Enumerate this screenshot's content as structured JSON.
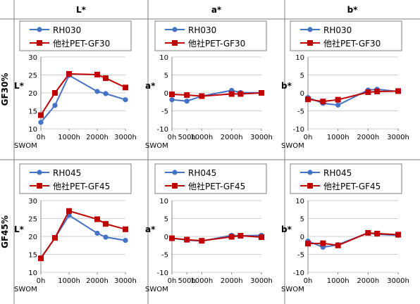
{
  "columns": [
    "L*",
    "a*",
    "b*"
  ],
  "rows": [
    "GF30%",
    "GF45%"
  ],
  "colors": {
    "rh": "#4472C4",
    "other": "#C00000",
    "grid": "#bfbfbf",
    "border": "#808080"
  },
  "chart_data": [
    {
      "type": "line",
      "row": 0,
      "col": 0,
      "x_tick_labels": [
        "0h",
        "1000h",
        "2000h",
        "3000h"
      ],
      "x_tick_values": [
        0,
        1000,
        2000,
        3000
      ],
      "x_unit": "SWOM",
      "ylabel": "L*",
      "ylim": [
        10,
        30
      ],
      "yticks": [
        10,
        15,
        20,
        25,
        30
      ],
      "series": [
        {
          "name": "RH030",
          "x": [
            0,
            500,
            1000,
            2000,
            2300,
            3000
          ],
          "y": [
            11.8,
            16.5,
            24.9,
            20.4,
            19.8,
            18.1
          ]
        },
        {
          "name": "他社PET-GF30",
          "x": [
            0,
            500,
            1000,
            2000,
            2300,
            3000
          ],
          "y": [
            13.8,
            20.0,
            25.3,
            25.1,
            24.1,
            21.5
          ]
        }
      ]
    },
    {
      "type": "line",
      "row": 0,
      "col": 1,
      "x_tick_labels": [
        "0h",
        "500h",
        "1000h",
        "2000h",
        "3000h"
      ],
      "x_tick_values": [
        0,
        500,
        1000,
        2000,
        3000
      ],
      "x_unit": "SWOM",
      "ylabel": "a*",
      "ylim": [
        -10,
        10
      ],
      "yticks": [
        -10,
        -5,
        0,
        5,
        10
      ],
      "series": [
        {
          "name": "RH030",
          "x": [
            0,
            500,
            1000,
            2000,
            2300,
            3000
          ],
          "y": [
            -1.9,
            -2.3,
            -0.9,
            0.7,
            0.1,
            0.0
          ]
        },
        {
          "name": "他社PET-GF30",
          "x": [
            0,
            500,
            1000,
            2000,
            2300,
            3000
          ],
          "y": [
            -0.4,
            -0.6,
            -0.9,
            -0.3,
            -0.3,
            0.0
          ]
        }
      ]
    },
    {
      "type": "line",
      "row": 0,
      "col": 2,
      "x_tick_labels": [
        "0h",
        "1000h",
        "2000h",
        "3000h"
      ],
      "x_tick_values": [
        0,
        1000,
        2000,
        3000
      ],
      "x_unit": "SWOM",
      "ylabel": "b*",
      "ylim": [
        -10,
        10
      ],
      "yticks": [
        -10,
        -5,
        0,
        5,
        10
      ],
      "series": [
        {
          "name": "RH030",
          "x": [
            0,
            500,
            1000,
            2000,
            2300,
            3000
          ],
          "y": [
            -1.3,
            -2.9,
            -3.4,
            0.8,
            1.0,
            0.4
          ]
        },
        {
          "name": "他社PET-GF30",
          "x": [
            0,
            500,
            1000,
            2000,
            2300,
            3000
          ],
          "y": [
            -1.8,
            -2.4,
            -1.9,
            0.2,
            0.4,
            0.5
          ]
        }
      ]
    },
    {
      "type": "line",
      "row": 1,
      "col": 0,
      "x_tick_labels": [
        "0h",
        "1000h",
        "2000h",
        "3000h"
      ],
      "x_tick_values": [
        0,
        1000,
        2000,
        3000
      ],
      "x_unit": "SWOM",
      "ylabel": "L*",
      "ylim": [
        10,
        30
      ],
      "yticks": [
        10,
        15,
        20,
        25,
        30
      ],
      "series": [
        {
          "name": "RH045",
          "x": [
            0,
            500,
            1000,
            2000,
            2300,
            3000
          ],
          "y": [
            14.0,
            19.6,
            25.9,
            20.9,
            19.8,
            18.9
          ]
        },
        {
          "name": "他社PET-GF45",
          "x": [
            0,
            500,
            1000,
            2000,
            2300,
            3000
          ],
          "y": [
            13.9,
            19.6,
            27.1,
            24.8,
            23.5,
            22.0
          ]
        }
      ]
    },
    {
      "type": "line",
      "row": 1,
      "col": 1,
      "x_tick_labels": [
        "0h",
        "500h",
        "1000h",
        "2000h",
        "3000h"
      ],
      "x_tick_values": [
        0,
        500,
        1000,
        2000,
        3000
      ],
      "x_unit": "SWOM",
      "ylabel": "a*",
      "ylim": [
        -10,
        10
      ],
      "yticks": [
        -10,
        -5,
        0,
        5,
        10
      ],
      "series": [
        {
          "name": "RH045",
          "x": [
            0,
            500,
            1000,
            2000,
            2300,
            3000
          ],
          "y": [
            -0.5,
            -1.0,
            -1.3,
            0.3,
            0.2,
            0.3
          ]
        },
        {
          "name": "他社PET-GF45",
          "x": [
            0,
            500,
            1000,
            2000,
            2300,
            3000
          ],
          "y": [
            -0.5,
            -0.9,
            -1.2,
            -0.1,
            0.2,
            -0.2
          ]
        }
      ]
    },
    {
      "type": "line",
      "row": 1,
      "col": 2,
      "x_tick_labels": [
        "0h",
        "1000h",
        "2000h",
        "3000h"
      ],
      "x_tick_values": [
        0,
        1000,
        2000,
        3000
      ],
      "x_unit": "SWOM",
      "ylabel": "b*",
      "ylim": [
        -10,
        10
      ],
      "yticks": [
        -10,
        -5,
        0,
        5,
        10
      ],
      "series": [
        {
          "name": "RH045",
          "x": [
            0,
            500,
            1000,
            2000,
            2300,
            3000
          ],
          "y": [
            -1.3,
            -3.0,
            -2.3,
            1.0,
            0.6,
            0.3
          ]
        },
        {
          "name": "他社PET-GF45",
          "x": [
            0,
            500,
            1000,
            2000,
            2300,
            3000
          ],
          "y": [
            -2.0,
            -1.9,
            -2.5,
            1.0,
            0.8,
            0.5
          ]
        }
      ]
    }
  ]
}
